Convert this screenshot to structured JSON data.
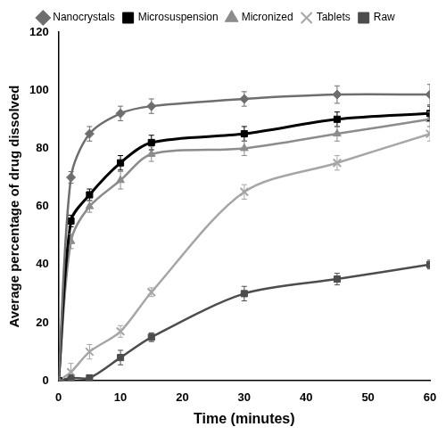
{
  "chart_data": {
    "type": "line",
    "x_label": "Time (minutes)",
    "y_label": "Average percentage of drug dissolved",
    "x": [
      0,
      2,
      5,
      10,
      15,
      30,
      45,
      60
    ],
    "series": [
      {
        "name": "Nanocrystals",
        "color": "#6e6e6e",
        "marker": "diamond",
        "values": [
          0,
          70,
          85,
          92,
          94.5,
          97,
          98.5,
          98.5
        ],
        "errors": [
          0,
          2,
          2.5,
          2.5,
          2.5,
          2.5,
          3,
          3.5
        ]
      },
      {
        "name": "Microsuspension",
        "color": "#000000",
        "marker": "square",
        "values": [
          0,
          55,
          64,
          75,
          82,
          85,
          90,
          92
        ],
        "errors": [
          0,
          2,
          2,
          2.5,
          2.5,
          2.5,
          2.5,
          2.5
        ]
      },
      {
        "name": "Micronized",
        "color": "#8c8c8c",
        "marker": "triangle",
        "values": [
          0,
          48,
          60,
          69,
          78,
          80,
          85,
          90
        ],
        "errors": [
          0,
          2.5,
          2,
          3,
          2.5,
          2.5,
          2.5,
          2.5
        ]
      },
      {
        "name": "Tablets",
        "color": "#a6a6a6",
        "marker": "x",
        "values": [
          0,
          3,
          10,
          17,
          30.5,
          65,
          75,
          85
        ],
        "errors": [
          0,
          3,
          2.5,
          2,
          1.5,
          2.5,
          2.5,
          2.5
        ]
      },
      {
        "name": "Raw",
        "color": "#4d4d4d",
        "marker": "boxed_x",
        "values": [
          0,
          1,
          1,
          8,
          15,
          30,
          35,
          40
        ],
        "errors": [
          0,
          1,
          1,
          2.5,
          1.5,
          2.5,
          2,
          1.5
        ]
      }
    ],
    "xlim": [
      0,
      60
    ],
    "xticks": [
      0,
      10,
      20,
      30,
      40,
      50,
      60
    ],
    "ylim": [
      0,
      120
    ],
    "yticks": [
      0,
      20,
      40,
      60,
      80,
      100,
      120
    ],
    "grid": false,
    "legend": "top"
  }
}
